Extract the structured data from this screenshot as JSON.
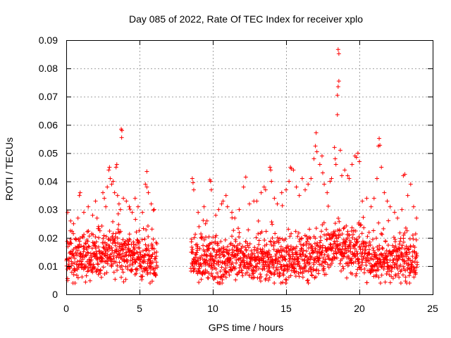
{
  "chart_data": {
    "type": "scatter",
    "title": "Day 085 of 2022, Rate Of TEC Index for receiver xplo",
    "xlabel": "GPS time / hours",
    "ylabel": "ROTI / TECUs",
    "xlim": [
      0,
      25
    ],
    "ylim": [
      0,
      0.09
    ],
    "x_ticks": [
      0,
      5,
      10,
      15,
      20,
      25
    ],
    "x_tick_labels": [
      "0",
      "5",
      "10",
      "15",
      "20",
      "25"
    ],
    "y_ticks": [
      0,
      0.01,
      0.02,
      0.03,
      0.04,
      0.05,
      0.06,
      0.07,
      0.08,
      0.09
    ],
    "y_tick_labels": [
      "0",
      "0.01",
      "0.02",
      "0.03",
      "0.04",
      "0.05",
      "0.06",
      "0.07",
      "0.08",
      "0.09"
    ],
    "grid": true,
    "marker": "plus",
    "marker_color": "#ff0000",
    "data_gap_hours": [
      6.2,
      8.5
    ],
    "series": [
      {
        "points": [
          [
            0.1,
            0.029
          ],
          [
            0.3,
            0.026
          ],
          [
            0.5,
            0.025
          ],
          [
            0.8,
            0.027
          ],
          [
            0.9,
            0.035
          ],
          [
            0.95,
            0.036
          ],
          [
            1.2,
            0.029
          ],
          [
            1.5,
            0.031
          ],
          [
            1.8,
            0.028
          ],
          [
            2.0,
            0.033
          ],
          [
            2.1,
            0.027
          ],
          [
            2.2,
            0.024
          ],
          [
            2.5,
            0.036
          ],
          [
            2.6,
            0.034
          ],
          [
            2.7,
            0.031
          ],
          [
            2.8,
            0.038
          ],
          [
            2.9,
            0.044
          ],
          [
            2.95,
            0.045
          ],
          [
            3.0,
            0.041
          ],
          [
            3.1,
            0.039
          ],
          [
            3.2,
            0.04
          ],
          [
            3.3,
            0.036
          ],
          [
            3.4,
            0.045
          ],
          [
            3.45,
            0.046
          ],
          [
            3.5,
            0.035
          ],
          [
            3.6,
            0.032
          ],
          [
            3.7,
            0.03
          ],
          [
            3.75,
            0.0585
          ],
          [
            3.8,
            0.058
          ],
          [
            3.78,
            0.0555
          ],
          [
            3.9,
            0.034
          ],
          [
            4.1,
            0.033
          ],
          [
            4.3,
            0.031
          ],
          [
            4.5,
            0.029
          ],
          [
            4.7,
            0.034
          ],
          [
            4.9,
            0.031
          ],
          [
            5.2,
            0.029
          ],
          [
            5.4,
            0.039
          ],
          [
            5.5,
            0.038
          ],
          [
            5.5,
            0.0435
          ],
          [
            5.6,
            0.036
          ],
          [
            5.8,
            0.032
          ],
          [
            6.0,
            0.03
          ],
          [
            8.6,
            0.041
          ],
          [
            8.65,
            0.0395
          ],
          [
            8.7,
            0.037
          ],
          [
            9.0,
            0.029
          ],
          [
            9.4,
            0.031
          ],
          [
            9.5,
            0.025
          ],
          [
            9.6,
            0.026
          ],
          [
            9.8,
            0.0405
          ],
          [
            9.85,
            0.04
          ],
          [
            9.9,
            0.037
          ],
          [
            10.2,
            0.028
          ],
          [
            10.4,
            0.03
          ],
          [
            10.6,
            0.032
          ],
          [
            10.7,
            0.033
          ],
          [
            10.9,
            0.035
          ],
          [
            11.0,
            0.031
          ],
          [
            11.3,
            0.029
          ],
          [
            11.5,
            0.027
          ],
          [
            11.8,
            0.03
          ],
          [
            12.1,
            0.038
          ],
          [
            12.25,
            0.0415
          ],
          [
            12.5,
            0.032
          ],
          [
            12.8,
            0.033
          ],
          [
            13.0,
            0.033
          ],
          [
            13.3,
            0.036
          ],
          [
            13.5,
            0.038
          ],
          [
            13.6,
            0.037
          ],
          [
            13.9,
            0.045
          ],
          [
            13.95,
            0.044
          ],
          [
            14.0,
            0.04
          ],
          [
            14.2,
            0.034
          ],
          [
            14.4,
            0.032
          ],
          [
            14.7,
            0.036
          ],
          [
            15.0,
            0.037
          ],
          [
            15.2,
            0.04
          ],
          [
            15.3,
            0.045
          ],
          [
            15.35,
            0.0445
          ],
          [
            15.5,
            0.044
          ],
          [
            15.7,
            0.038
          ],
          [
            15.9,
            0.035
          ],
          [
            16.1,
            0.041
          ],
          [
            16.3,
            0.037
          ],
          [
            16.5,
            0.039
          ],
          [
            16.7,
            0.041
          ],
          [
            16.9,
            0.048
          ],
          [
            17.0,
            0.0525
          ],
          [
            17.05,
            0.0572
          ],
          [
            17.1,
            0.0505
          ],
          [
            17.3,
            0.046
          ],
          [
            17.45,
            0.049
          ],
          [
            17.5,
            0.043
          ],
          [
            17.6,
            0.039
          ],
          [
            17.8,
            0.036
          ],
          [
            18.0,
            0.04
          ],
          [
            18.1,
            0.041
          ],
          [
            18.3,
            0.052
          ],
          [
            18.35,
            0.048
          ],
          [
            18.4,
            0.046
          ],
          [
            18.5,
            0.0705
          ],
          [
            18.55,
            0.0735
          ],
          [
            18.6,
            0.0755
          ],
          [
            18.5,
            0.0636
          ],
          [
            18.55,
            0.0867
          ],
          [
            18.6,
            0.0852
          ],
          [
            18.7,
            0.051
          ],
          [
            18.8,
            0.042
          ],
          [
            19.0,
            0.044
          ],
          [
            19.2,
            0.042
          ],
          [
            19.3,
            0.041
          ],
          [
            19.5,
            0.046
          ],
          [
            19.7,
            0.049
          ],
          [
            19.8,
            0.0485
          ],
          [
            19.9,
            0.05
          ],
          [
            20.0,
            0.047
          ],
          [
            20.2,
            0.033
          ],
          [
            20.5,
            0.034
          ],
          [
            20.8,
            0.031
          ],
          [
            21.0,
            0.034
          ],
          [
            21.2,
            0.041
          ],
          [
            21.3,
            0.0525
          ],
          [
            21.35,
            0.0552
          ],
          [
            21.4,
            0.0528
          ],
          [
            21.5,
            0.045
          ],
          [
            21.7,
            0.036
          ],
          [
            21.9,
            0.033
          ],
          [
            22.1,
            0.031
          ],
          [
            22.4,
            0.029
          ],
          [
            22.6,
            0.027
          ],
          [
            22.9,
            0.03
          ],
          [
            23.0,
            0.042
          ],
          [
            23.1,
            0.0425
          ],
          [
            23.3,
            0.035
          ],
          [
            23.5,
            0.039
          ],
          [
            23.7,
            0.031
          ],
          [
            23.9,
            0.027
          ]
        ]
      }
    ]
  }
}
